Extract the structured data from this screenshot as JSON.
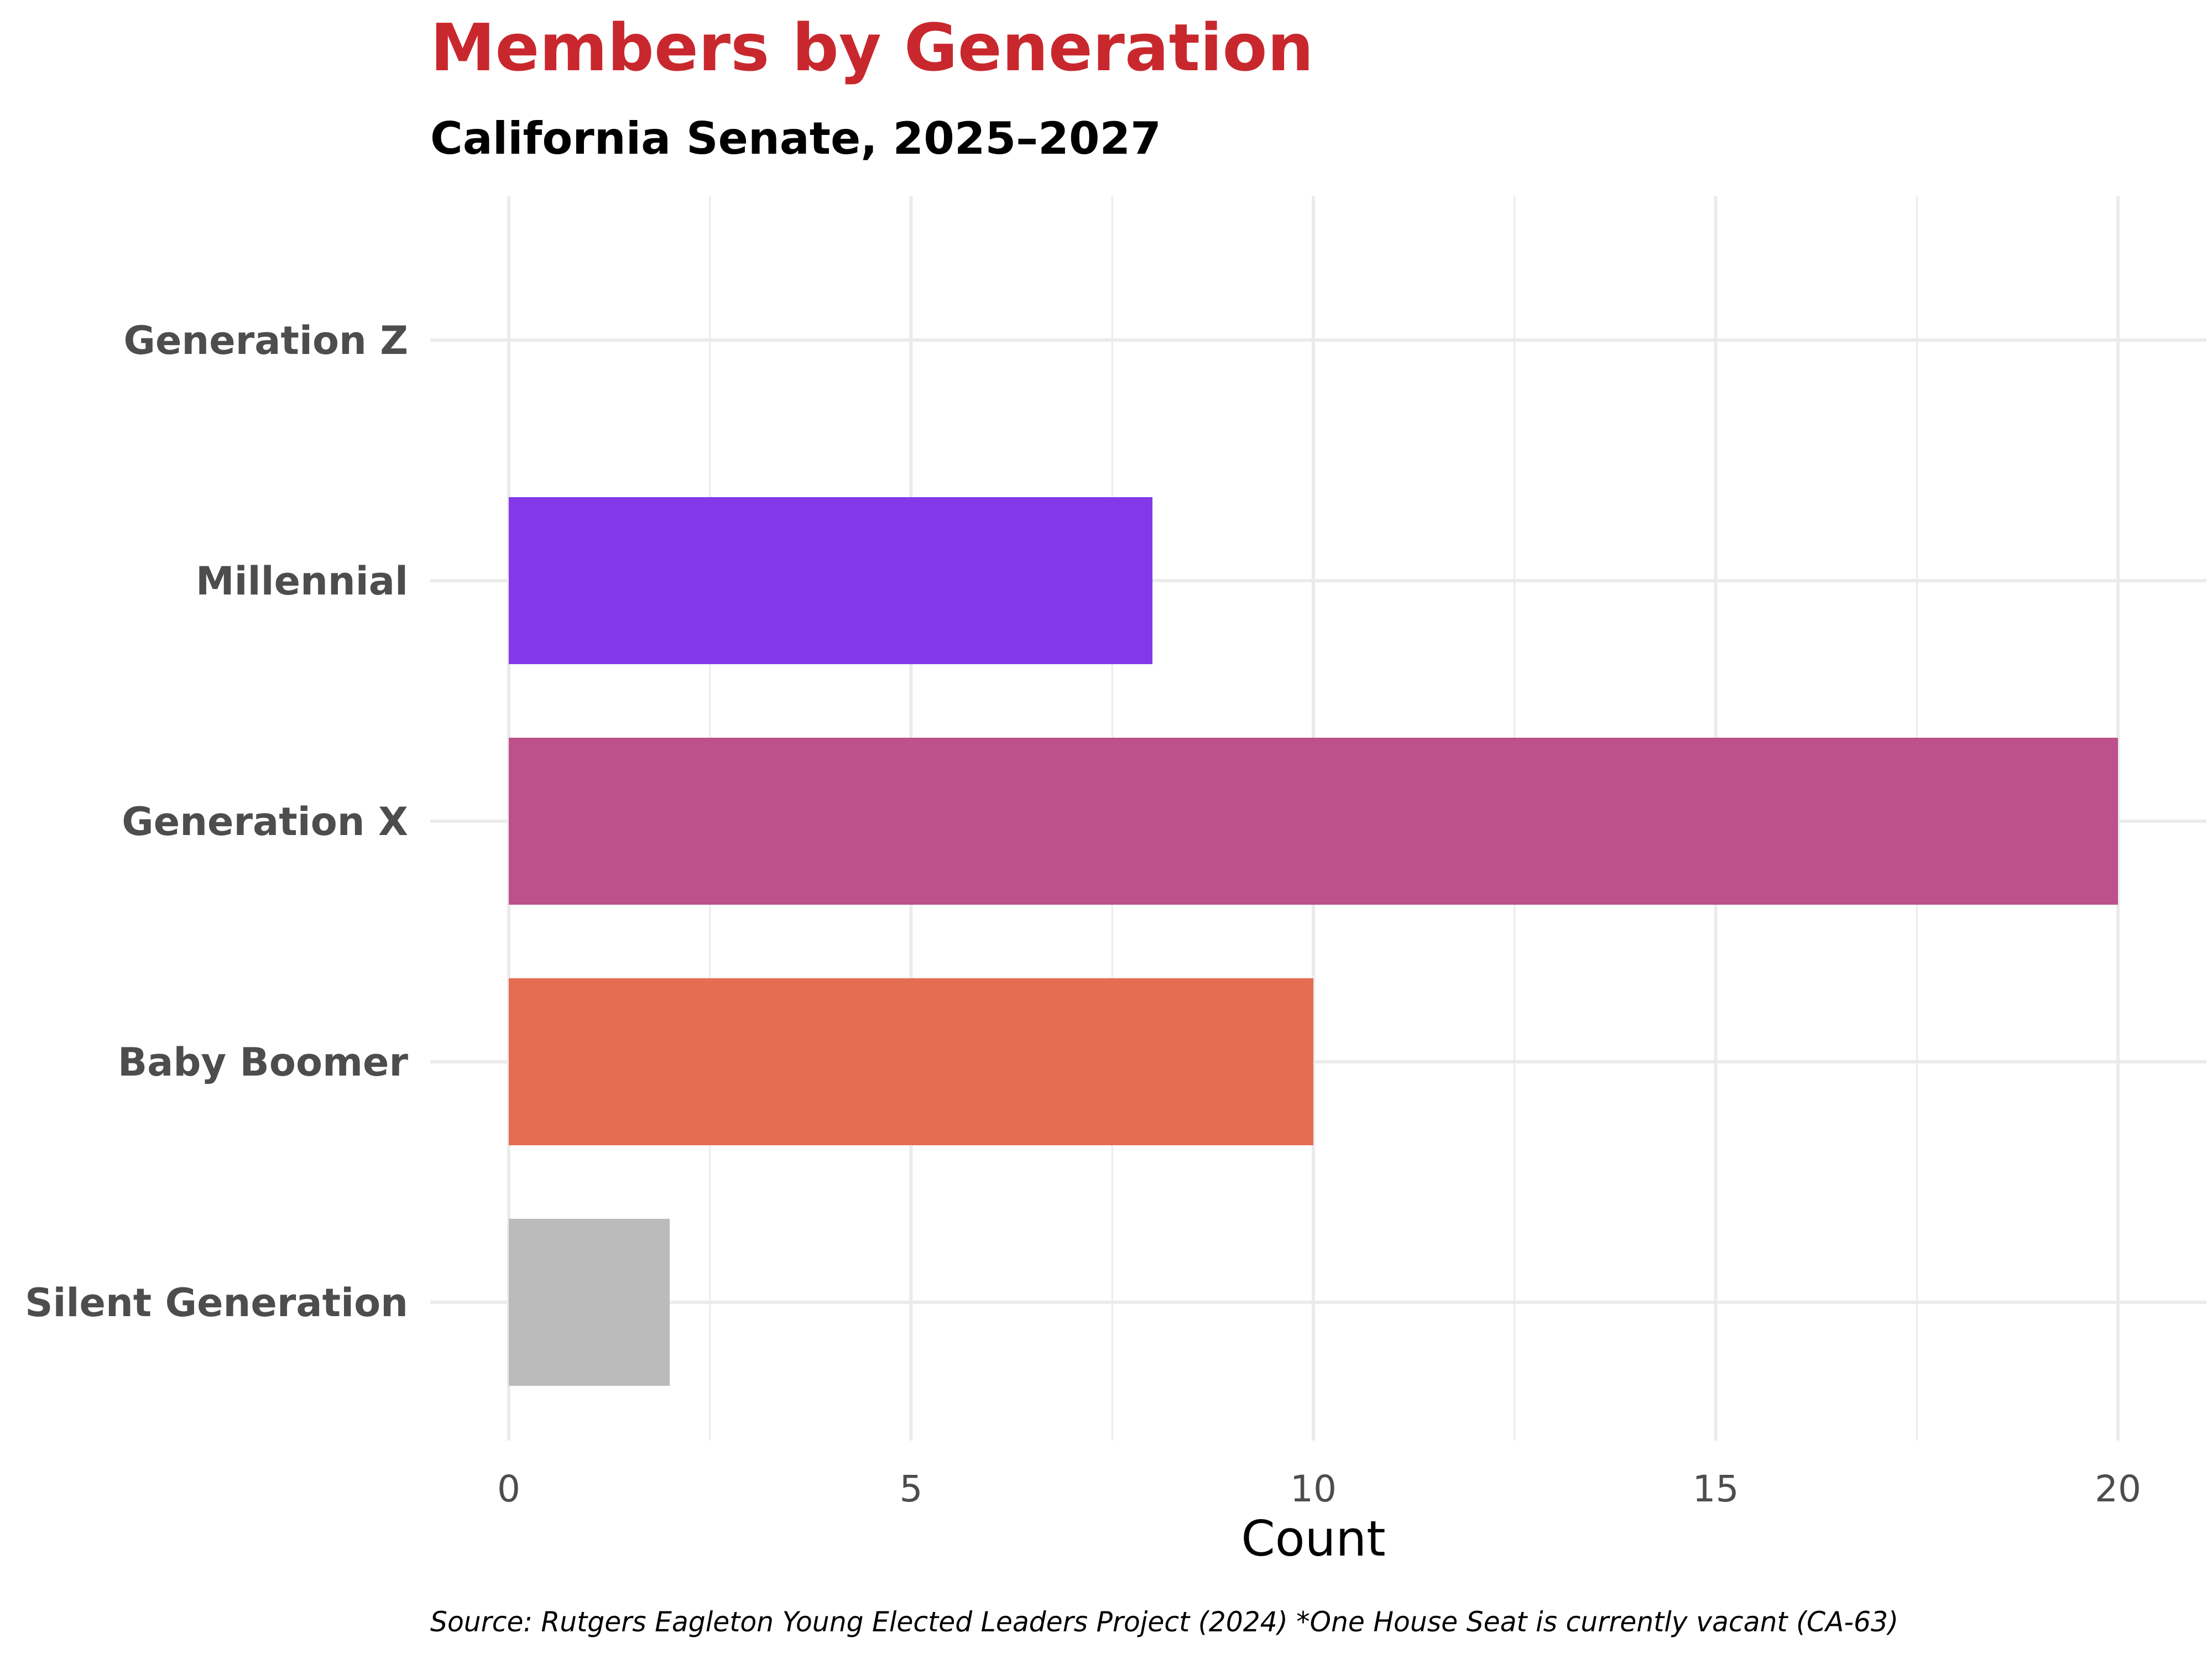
{
  "chart_data": {
    "type": "bar",
    "orientation": "horizontal",
    "title": "Members by Generation",
    "subtitle": "California Senate, 2025–2027",
    "xlabel": "Count",
    "ylabel": "",
    "categories": [
      "Generation Z",
      "Millennial",
      "Generation X",
      "Baby Boomer",
      "Silent Generation"
    ],
    "values": [
      0,
      8,
      20,
      10,
      2
    ],
    "colors": [
      "#7e3fcf",
      "#8338e9",
      "#bd518c",
      "#e56e52",
      "#bbbbbb"
    ],
    "xlim": [
      0,
      20
    ],
    "xticks": [
      0,
      5,
      10,
      15,
      20
    ],
    "grid": true,
    "legend": "none",
    "title_color": "#c8282d",
    "caption": "Source: Rutgers Eagleton Young Elected Leaders Project (2024) *One House Seat is currently vacant (CA-63)"
  }
}
